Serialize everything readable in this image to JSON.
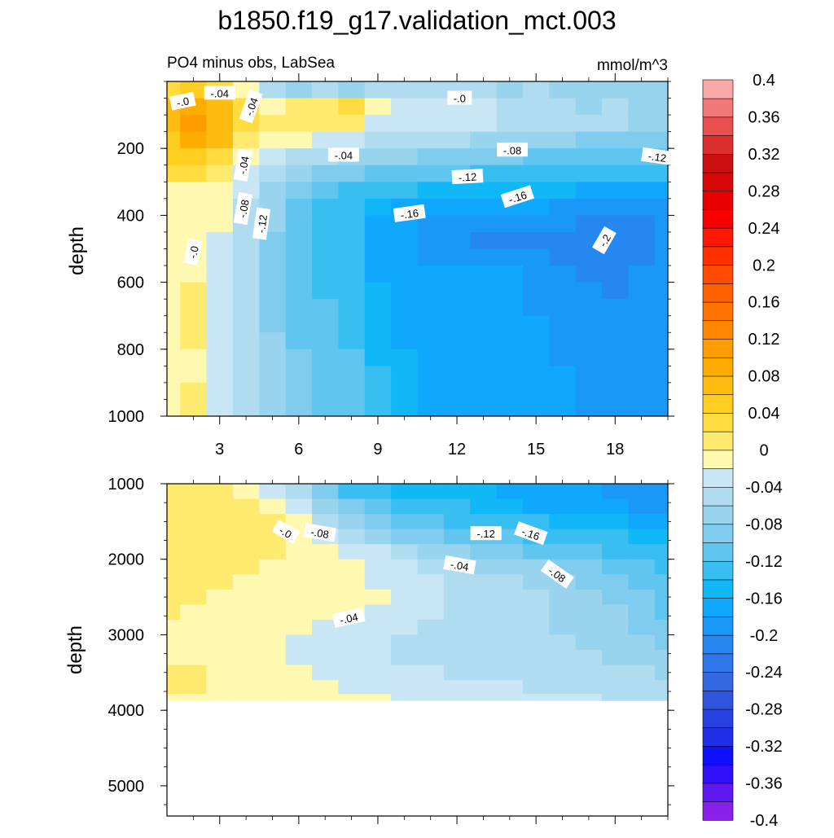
{
  "title": "b1850.f19_g17.validation_mct.003",
  "chart_data": {
    "type": "heatmap",
    "subtitle_left": "PO4 minus obs, LabSea",
    "subtitle_right": "mmol/m^3",
    "colorbar": {
      "levels": [
        -0.4,
        -0.38,
        -0.36,
        -0.34,
        -0.32,
        -0.3,
        -0.28,
        -0.26,
        -0.24,
        -0.22,
        -0.2,
        -0.18,
        -0.16,
        -0.14,
        -0.12,
        -0.1,
        -0.08,
        -0.06,
        -0.04,
        -0.02,
        0,
        0.02,
        0.04,
        0.06,
        0.08,
        0.1,
        0.12,
        0.14,
        0.16,
        0.18,
        0.2,
        0.22,
        0.24,
        0.26,
        0.28,
        0.3,
        0.32,
        0.34,
        0.36,
        0.38,
        0.4
      ],
      "tick_labels": [
        "-0.4",
        "-0.36",
        "-0.32",
        "-0.28",
        "-0.24",
        "-0.2",
        "-0.16",
        "-0.12",
        "-0.08",
        "-0.04",
        "0",
        "0.04",
        "0.08",
        "0.12",
        "0.16",
        "0.2",
        "0.24",
        "0.28",
        "0.32",
        "0.36",
        "0.4"
      ],
      "colors": [
        "#8820e8",
        "#6018f0",
        "#3010f8",
        "#1010ff",
        "#2030e8",
        "#2840e0",
        "#3054dc",
        "#3468e0",
        "#3078e8",
        "#2488f0",
        "#1a98f8",
        "#10a8fc",
        "#10b8f8",
        "#38bef0",
        "#60c6f0",
        "#80ccee",
        "#98d4ee",
        "#b0dcf0",
        "#c8e6f4",
        "#fff8b0",
        "#ffea70",
        "#ffdc40",
        "#ffcc20",
        "#ffbc10",
        "#ffac00",
        "#ff9c00",
        "#ff8800",
        "#ff7400",
        "#ff6000",
        "#ff4c00",
        "#ff3000",
        "#ff1800",
        "#f80000",
        "#e80000",
        "#d80808",
        "#cc1010",
        "#dc3030",
        "#e85050",
        "#f07878",
        "#f8a8a8"
      ]
    },
    "panels": [
      {
        "name": "upper",
        "ylabel": "depth",
        "ylim": [
          0,
          1000
        ],
        "y_ticks": [
          "200",
          "400",
          "600",
          "800",
          "1000"
        ],
        "xlim": [
          1,
          20
        ],
        "x_ticks": [
          "3",
          "6",
          "9",
          "12",
          "15",
          "18"
        ],
        "contour_labels": [
          "-.0",
          "-.04",
          "-.04",
          "-.0",
          "-.04",
          "-.08",
          "-.12",
          "-.04",
          "-.12",
          "-.08",
          "-.12",
          "-.16",
          "-.16",
          "-.2",
          "-.0"
        ],
        "x": [
          1,
          2,
          3,
          4,
          5,
          6,
          7,
          8,
          9,
          10,
          11,
          12,
          13,
          14,
          15,
          16,
          17,
          18,
          19,
          20
        ],
        "y": [
          25,
          75,
          125,
          175,
          225,
          275,
          325,
          375,
          425,
          475,
          525,
          575,
          625,
          675,
          725,
          775,
          825,
          875,
          925,
          975
        ],
        "z": [
          [
            0.02,
            0.04,
            0.02,
            -0.02,
            -0.05,
            -0.07,
            -0.06,
            -0.07,
            -0.06,
            -0.05,
            -0.05,
            -0.06,
            -0.05,
            -0.07,
            -0.06,
            -0.08,
            -0.07,
            -0.08,
            -0.08,
            -0.08
          ],
          [
            0.06,
            0.09,
            0.06,
            0.02,
            -0.01,
            0.0,
            0.01,
            0.02,
            -0.02,
            -0.03,
            -0.03,
            -0.04,
            -0.04,
            -0.05,
            -0.06,
            -0.06,
            -0.07,
            -0.06,
            -0.07,
            -0.07
          ],
          [
            0.06,
            0.1,
            0.07,
            0.02,
            0.0,
            0.01,
            0.01,
            0.0,
            -0.03,
            -0.03,
            -0.04,
            -0.04,
            -0.04,
            -0.05,
            -0.05,
            -0.05,
            -0.06,
            -0.06,
            -0.07,
            -0.07
          ],
          [
            0.05,
            0.08,
            0.06,
            0.01,
            -0.02,
            -0.02,
            -0.03,
            -0.04,
            -0.05,
            -0.05,
            -0.06,
            -0.06,
            -0.07,
            -0.07,
            -0.08,
            -0.08,
            -0.09,
            -0.09,
            -0.1,
            -0.1
          ],
          [
            0.04,
            0.05,
            0.03,
            -0.01,
            -0.04,
            -0.05,
            -0.06,
            -0.07,
            -0.08,
            -0.08,
            -0.09,
            -0.1,
            -0.1,
            -0.1,
            -0.11,
            -0.11,
            -0.11,
            -0.12,
            -0.12,
            -0.12
          ],
          [
            0.02,
            0.02,
            0.0,
            -0.03,
            -0.06,
            -0.08,
            -0.09,
            -0.1,
            -0.11,
            -0.11,
            -0.12,
            -0.12,
            -0.13,
            -0.13,
            -0.14,
            -0.14,
            -0.14,
            -0.14,
            -0.14,
            -0.14
          ],
          [
            -0.01,
            -0.01,
            -0.02,
            -0.04,
            -0.07,
            -0.1,
            -0.11,
            -0.13,
            -0.14,
            -0.14,
            -0.15,
            -0.15,
            -0.15,
            -0.16,
            -0.16,
            -0.16,
            -0.17,
            -0.17,
            -0.17,
            -0.17
          ],
          [
            -0.01,
            -0.02,
            -0.02,
            -0.05,
            -0.08,
            -0.11,
            -0.13,
            -0.14,
            -0.16,
            -0.17,
            -0.17,
            -0.18,
            -0.18,
            -0.18,
            -0.18,
            -0.19,
            -0.19,
            -0.2,
            -0.2,
            -0.2
          ],
          [
            -0.01,
            -0.02,
            -0.02,
            -0.05,
            -0.08,
            -0.12,
            -0.13,
            -0.14,
            -0.17,
            -0.18,
            -0.19,
            -0.19,
            -0.19,
            -0.19,
            -0.19,
            -0.2,
            -0.21,
            -0.21,
            -0.21,
            -0.2
          ],
          [
            -0.01,
            -0.02,
            -0.03,
            -0.05,
            -0.09,
            -0.12,
            -0.13,
            -0.14,
            -0.17,
            -0.18,
            -0.19,
            -0.2,
            -0.21,
            -0.21,
            -0.21,
            -0.21,
            -0.21,
            -0.21,
            -0.21,
            -0.2
          ],
          [
            -0.01,
            -0.02,
            -0.03,
            -0.05,
            -0.09,
            -0.12,
            -0.13,
            -0.14,
            -0.17,
            -0.18,
            -0.19,
            -0.19,
            -0.19,
            -0.19,
            -0.2,
            -0.21,
            -0.21,
            -0.21,
            -0.21,
            -0.2
          ],
          [
            -0.01,
            -0.01,
            -0.03,
            -0.05,
            -0.09,
            -0.12,
            -0.13,
            -0.14,
            -0.17,
            -0.18,
            -0.18,
            -0.18,
            -0.18,
            -0.18,
            -0.19,
            -0.2,
            -0.21,
            -0.21,
            -0.2,
            -0.19
          ],
          [
            -0.01,
            0.01,
            -0.03,
            -0.05,
            -0.09,
            -0.12,
            -0.13,
            -0.14,
            -0.16,
            -0.18,
            -0.18,
            -0.18,
            -0.18,
            -0.18,
            -0.19,
            -0.19,
            -0.2,
            -0.21,
            -0.2,
            -0.19
          ],
          [
            -0.01,
            0.01,
            -0.03,
            -0.05,
            -0.09,
            -0.12,
            -0.12,
            -0.13,
            -0.16,
            -0.17,
            -0.18,
            -0.18,
            -0.18,
            -0.18,
            -0.19,
            -0.19,
            -0.2,
            -0.2,
            -0.19,
            -0.19
          ],
          [
            -0.01,
            0.01,
            -0.03,
            -0.05,
            -0.09,
            -0.11,
            -0.12,
            -0.13,
            -0.16,
            -0.17,
            -0.17,
            -0.17,
            -0.17,
            -0.18,
            -0.18,
            -0.19,
            -0.2,
            -0.2,
            -0.19,
            -0.19
          ],
          [
            -0.01,
            0.0,
            -0.03,
            -0.05,
            -0.08,
            -0.11,
            -0.12,
            -0.13,
            -0.15,
            -0.17,
            -0.17,
            -0.17,
            -0.17,
            -0.18,
            -0.18,
            -0.19,
            -0.2,
            -0.2,
            -0.2,
            -0.19
          ],
          [
            -0.01,
            -0.01,
            -0.03,
            -0.05,
            -0.08,
            -0.1,
            -0.11,
            -0.12,
            -0.15,
            -0.16,
            -0.17,
            -0.17,
            -0.17,
            -0.18,
            -0.18,
            -0.19,
            -0.19,
            -0.2,
            -0.2,
            -0.2
          ],
          [
            -0.01,
            -0.01,
            -0.03,
            -0.05,
            -0.08,
            -0.1,
            -0.11,
            -0.12,
            -0.14,
            -0.16,
            -0.17,
            -0.17,
            -0.17,
            -0.17,
            -0.18,
            -0.18,
            -0.19,
            -0.2,
            -0.2,
            -0.2
          ],
          [
            -0.01,
            0.0,
            -0.03,
            -0.05,
            -0.07,
            -0.09,
            -0.11,
            -0.12,
            -0.14,
            -0.16,
            -0.17,
            -0.17,
            -0.17,
            -0.17,
            -0.18,
            -0.18,
            -0.19,
            -0.2,
            -0.2,
            -0.2
          ],
          [
            -0.01,
            0.0,
            -0.03,
            -0.05,
            -0.07,
            -0.09,
            -0.11,
            -0.12,
            -0.14,
            -0.16,
            -0.17,
            -0.17,
            -0.17,
            -0.17,
            -0.18,
            -0.18,
            -0.19,
            -0.2,
            -0.2,
            -0.2
          ]
        ]
      },
      {
        "name": "lower",
        "ylabel": "depth",
        "ylim": [
          1000,
          5400
        ],
        "y_ticks": [
          "1000",
          "2000",
          "3000",
          "4000",
          "5000"
        ],
        "xlim": [
          1,
          20
        ],
        "data_max_depth": 3870,
        "contour_labels": [
          "-.0",
          "-.08",
          "-.12",
          "-.16",
          "-.04",
          "-.08",
          "-.04"
        ],
        "x": [
          1,
          2,
          3,
          4,
          5,
          6,
          7,
          8,
          9,
          10,
          11,
          12,
          13,
          14,
          15,
          16,
          17,
          18,
          19,
          20
        ],
        "y": [
          1100,
          1300,
          1500,
          1700,
          1900,
          2100,
          2300,
          2500,
          2700,
          2900,
          3100,
          3300,
          3500,
          3700,
          3870
        ],
        "z": [
          [
            0.0,
            0.0,
            0.0,
            -0.01,
            -0.03,
            -0.06,
            -0.1,
            -0.13,
            -0.14,
            -0.15,
            -0.16,
            -0.16,
            -0.16,
            -0.17,
            -0.17,
            -0.18,
            -0.18,
            -0.19,
            -0.19,
            -0.2
          ],
          [
            0.01,
            0.01,
            0.01,
            0.01,
            -0.01,
            -0.04,
            -0.07,
            -0.1,
            -0.12,
            -0.13,
            -0.14,
            -0.14,
            -0.15,
            -0.16,
            -0.17,
            -0.17,
            -0.17,
            -0.18,
            -0.19,
            -0.19
          ],
          [
            0.01,
            0.01,
            0.01,
            0.01,
            0.0,
            -0.02,
            -0.05,
            -0.08,
            -0.1,
            -0.11,
            -0.12,
            -0.13,
            -0.13,
            -0.14,
            -0.14,
            -0.15,
            -0.15,
            -0.16,
            -0.17,
            -0.18
          ],
          [
            0.01,
            0.01,
            0.01,
            0.01,
            0.0,
            -0.01,
            -0.03,
            -0.05,
            -0.07,
            -0.09,
            -0.1,
            -0.11,
            -0.12,
            -0.12,
            -0.13,
            -0.13,
            -0.14,
            -0.14,
            -0.15,
            -0.15
          ],
          [
            0.01,
            0.01,
            0.01,
            0.01,
            0.0,
            -0.01,
            -0.02,
            -0.03,
            -0.04,
            -0.05,
            -0.07,
            -0.08,
            -0.09,
            -0.1,
            -0.11,
            -0.12,
            -0.12,
            -0.13,
            -0.13,
            -0.14
          ],
          [
            0.01,
            0.01,
            0.01,
            0.0,
            -0.01,
            -0.01,
            -0.02,
            -0.02,
            -0.03,
            -0.04,
            -0.05,
            -0.06,
            -0.07,
            -0.07,
            -0.08,
            -0.09,
            -0.1,
            -0.11,
            -0.12,
            -0.13
          ],
          [
            0.01,
            0.01,
            0.0,
            -0.01,
            -0.01,
            -0.01,
            -0.02,
            -0.02,
            -0.03,
            -0.03,
            -0.04,
            -0.05,
            -0.06,
            -0.06,
            -0.07,
            -0.08,
            -0.09,
            -0.1,
            -0.11,
            -0.12
          ],
          [
            0.01,
            0.01,
            -0.01,
            -0.01,
            -0.01,
            -0.01,
            -0.02,
            -0.02,
            -0.02,
            -0.03,
            -0.04,
            -0.05,
            -0.05,
            -0.06,
            -0.06,
            -0.07,
            -0.08,
            -0.09,
            -0.1,
            -0.11
          ],
          [
            0.01,
            -0.01,
            -0.01,
            -0.01,
            -0.01,
            -0.02,
            -0.02,
            -0.02,
            -0.03,
            -0.03,
            -0.04,
            -0.05,
            -0.05,
            -0.06,
            -0.06,
            -0.07,
            -0.08,
            -0.08,
            -0.1,
            -0.11
          ],
          [
            -0.01,
            -0.01,
            -0.01,
            -0.01,
            -0.02,
            -0.02,
            -0.03,
            -0.03,
            -0.04,
            -0.04,
            -0.05,
            -0.05,
            -0.06,
            -0.06,
            -0.06,
            -0.07,
            -0.07,
            -0.08,
            -0.09,
            -0.1
          ],
          [
            -0.01,
            -0.01,
            -0.01,
            -0.01,
            -0.02,
            -0.03,
            -0.03,
            -0.04,
            -0.04,
            -0.05,
            -0.05,
            -0.06,
            -0.06,
            -0.06,
            -0.06,
            -0.06,
            -0.07,
            -0.07,
            -0.08,
            -0.09
          ],
          [
            -0.01,
            -0.01,
            -0.01,
            -0.01,
            -0.02,
            -0.03,
            -0.03,
            -0.04,
            -0.04,
            -0.05,
            -0.05,
            -0.05,
            -0.05,
            -0.05,
            -0.06,
            -0.06,
            -0.06,
            -0.07,
            -0.07,
            -0.08
          ],
          [
            0.01,
            0.0,
            -0.01,
            -0.01,
            -0.01,
            -0.02,
            -0.03,
            -0.03,
            -0.04,
            -0.04,
            -0.04,
            -0.05,
            -0.05,
            -0.05,
            -0.05,
            -0.05,
            -0.06,
            -0.06,
            -0.06,
            -0.07
          ],
          [
            0.01,
            0.0,
            -0.01,
            -0.01,
            -0.01,
            -0.01,
            -0.02,
            -0.03,
            -0.03,
            -0.03,
            -0.04,
            -0.04,
            -0.04,
            -0.04,
            -0.05,
            -0.05,
            -0.05,
            -0.05,
            -0.06,
            -0.06
          ],
          [
            -0.01,
            -0.01,
            -0.01,
            -0.01,
            -0.01,
            -0.01,
            -0.01,
            -0.02,
            -0.02,
            -0.03,
            -0.03,
            -0.03,
            -0.03,
            -0.04,
            -0.04,
            -0.04,
            -0.04,
            -0.05,
            -0.05,
            -0.05
          ]
        ]
      }
    ]
  }
}
